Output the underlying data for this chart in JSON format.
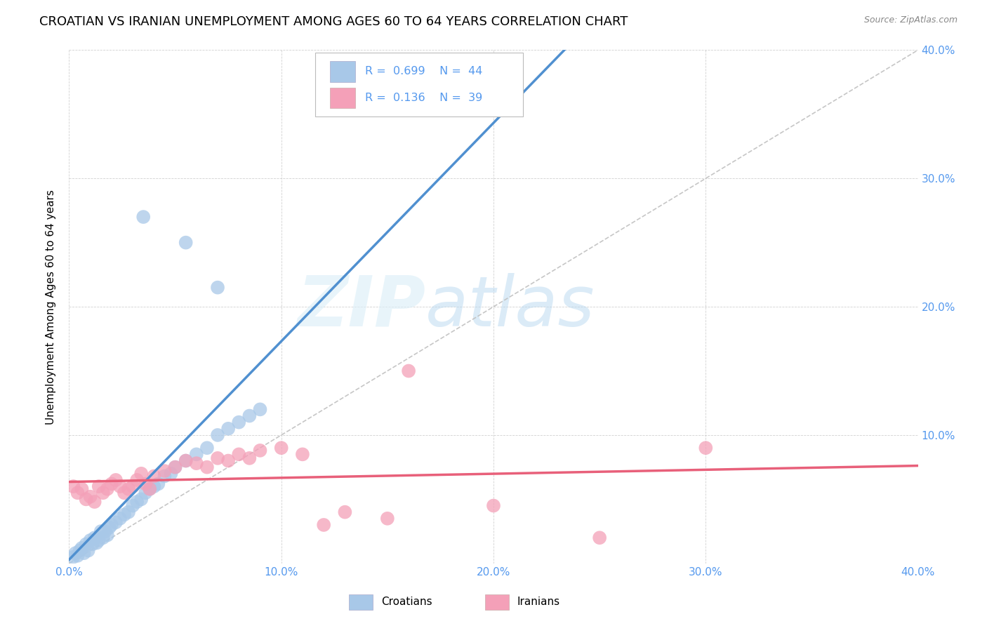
{
  "title": "CROATIAN VS IRANIAN UNEMPLOYMENT AMONG AGES 60 TO 64 YEARS CORRELATION CHART",
  "source": "Source: ZipAtlas.com",
  "ylabel": "Unemployment Among Ages 60 to 64 years",
  "xlim": [
    0.0,
    0.4
  ],
  "ylim": [
    0.0,
    0.4
  ],
  "xticks": [
    0.0,
    0.1,
    0.2,
    0.3,
    0.4
  ],
  "yticks": [
    0.0,
    0.1,
    0.2,
    0.3,
    0.4
  ],
  "xticklabels": [
    "0.0%",
    "10.0%",
    "20.0%",
    "30.0%",
    "40.0%"
  ],
  "yticklabels": [
    "",
    "10.0%",
    "20.0%",
    "30.0%",
    "40.0%"
  ],
  "croatian_color": "#a8c8e8",
  "iranian_color": "#f4a0b8",
  "trendline_croatian_color": "#5090d0",
  "trendline_iranian_color": "#e8607a",
  "diagonal_color": "#c0c0c0",
  "watermark_zip": "ZIP",
  "watermark_atlas": "atlas",
  "tick_color": "#5599ee",
  "legend_box_color": "#dddddd",
  "croatian_x": [
    0.002,
    0.003,
    0.004,
    0.005,
    0.006,
    0.007,
    0.008,
    0.009,
    0.01,
    0.011,
    0.012,
    0.013,
    0.014,
    0.015,
    0.016,
    0.017,
    0.018,
    0.019,
    0.02,
    0.022,
    0.024,
    0.026,
    0.028,
    0.03,
    0.032,
    0.034,
    0.036,
    0.038,
    0.04,
    0.042,
    0.045,
    0.048,
    0.05,
    0.055,
    0.06,
    0.065,
    0.07,
    0.075,
    0.08,
    0.085,
    0.09,
    0.035,
    0.055,
    0.07
  ],
  "croatian_y": [
    0.005,
    0.008,
    0.006,
    0.01,
    0.012,
    0.008,
    0.015,
    0.01,
    0.018,
    0.015,
    0.02,
    0.016,
    0.018,
    0.025,
    0.02,
    0.025,
    0.022,
    0.028,
    0.03,
    0.032,
    0.035,
    0.038,
    0.04,
    0.045,
    0.048,
    0.05,
    0.055,
    0.058,
    0.06,
    0.062,
    0.068,
    0.07,
    0.075,
    0.08,
    0.085,
    0.09,
    0.1,
    0.105,
    0.11,
    0.115,
    0.12,
    0.27,
    0.25,
    0.215
  ],
  "iranian_x": [
    0.002,
    0.004,
    0.006,
    0.008,
    0.01,
    0.012,
    0.014,
    0.016,
    0.018,
    0.02,
    0.022,
    0.024,
    0.026,
    0.028,
    0.03,
    0.032,
    0.034,
    0.036,
    0.038,
    0.04,
    0.045,
    0.05,
    0.055,
    0.06,
    0.065,
    0.07,
    0.075,
    0.08,
    0.085,
    0.09,
    0.1,
    0.11,
    0.12,
    0.13,
    0.15,
    0.16,
    0.2,
    0.25,
    0.3
  ],
  "iranian_y": [
    0.06,
    0.055,
    0.058,
    0.05,
    0.052,
    0.048,
    0.06,
    0.055,
    0.058,
    0.062,
    0.065,
    0.06,
    0.055,
    0.058,
    0.06,
    0.065,
    0.07,
    0.062,
    0.058,
    0.068,
    0.072,
    0.075,
    0.08,
    0.078,
    0.075,
    0.082,
    0.08,
    0.085,
    0.082,
    0.088,
    0.09,
    0.085,
    0.03,
    0.04,
    0.035,
    0.15,
    0.045,
    0.02,
    0.09
  ]
}
